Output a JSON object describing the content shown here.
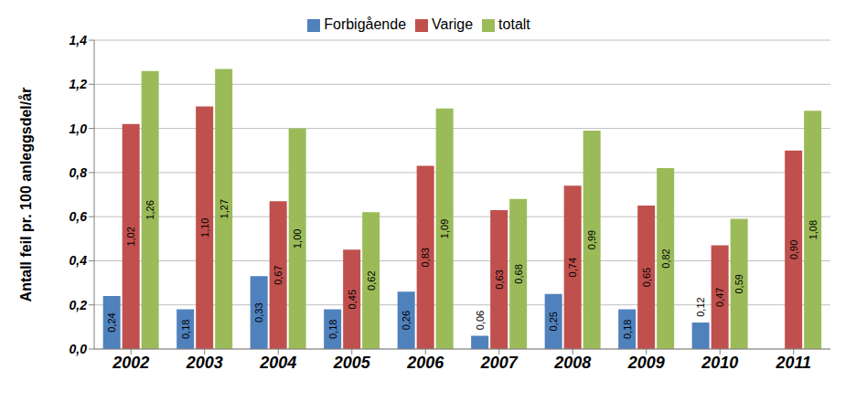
{
  "chart_data": {
    "type": "bar",
    "y_label": "Antall feil pr. 100 anleggsdel/år",
    "categories": [
      "2002",
      "2003",
      "2004",
      "2005",
      "2006",
      "2007",
      "2008",
      "2009",
      "2010",
      "2011"
    ],
    "series": [
      {
        "name": "Forbigående",
        "color": "#4F81BD",
        "values": [
          0.24,
          0.18,
          0.33,
          0.18,
          0.26,
          0.06,
          0.25,
          0.18,
          0.12,
          null
        ],
        "value_labels": [
          "0,24",
          "0,18",
          "0,33",
          "0,18",
          "0,26",
          "0,06",
          "0,25",
          "0,18",
          "0,12",
          null
        ]
      },
      {
        "name": "Varige",
        "color": "#C0504D",
        "values": [
          1.02,
          1.1,
          0.67,
          0.45,
          0.83,
          0.63,
          0.74,
          0.65,
          0.47,
          0.9
        ],
        "value_labels": [
          "1,02",
          "1,10",
          "0,67",
          "0,45",
          "0,83",
          "0,63",
          "0,74",
          "0,65",
          "0,47",
          "0,90"
        ]
      },
      {
        "name": "totalt",
        "color": "#9BBB59",
        "values": [
          1.26,
          1.27,
          1.0,
          0.62,
          1.09,
          0.68,
          0.99,
          0.82,
          0.59,
          1.08
        ],
        "value_labels": [
          "1,26",
          "1,27",
          "1,00",
          "0,62",
          "1,09",
          "0,68",
          "0,99",
          "0,82",
          "0,59",
          "1,08"
        ]
      }
    ],
    "ylim": [
      0,
      1.4
    ],
    "yticks": [
      {
        "value": 0,
        "label": "0,0"
      },
      {
        "value": 0.2,
        "label": "0,2"
      },
      {
        "value": 0.4,
        "label": "0,4"
      },
      {
        "value": 0.6,
        "label": "0,6"
      },
      {
        "value": 0.8,
        "label": "0,8"
      },
      {
        "value": 1.0,
        "label": "1,0"
      },
      {
        "value": 1.2,
        "label": "1,2"
      },
      {
        "value": 1.4,
        "label": "1,4"
      }
    ],
    "grid": true,
    "legend": "top",
    "data_labels": true
  }
}
